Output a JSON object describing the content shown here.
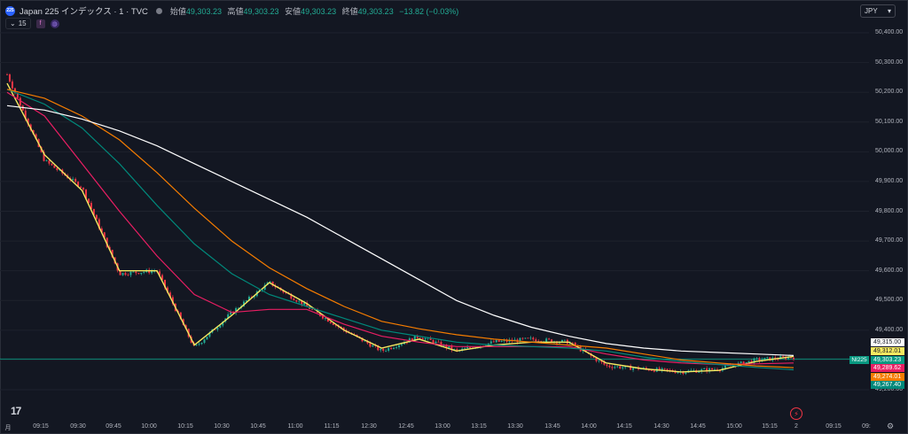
{
  "header": {
    "symbol_logo": "225",
    "title": "Japan 225 インデックス · 1 · TVC",
    "ohlc": [
      {
        "key": "始値",
        "value": "49,303.23"
      },
      {
        "key": "高値",
        "value": "49,303.23"
      },
      {
        "key": "安値",
        "value": "49,303.23"
      },
      {
        "key": "終値",
        "value": "49,303.23"
      }
    ],
    "change": "−13.82 (−0.03%)",
    "interval": "15",
    "currency": "JPY"
  },
  "colors": {
    "background": "#131722",
    "up": "#22ab94",
    "down": "#f23645",
    "ma_yellow": "#f5e960",
    "ma_pink": "#e91e63",
    "ma_teal": "#00897b",
    "ma_orange": "#f57c00",
    "ma_white": "#ffffff"
  },
  "price_axis": {
    "labels": [
      "50,400.00",
      "50,300.00",
      "50,200.00",
      "50,100.00",
      "50,000.00",
      "49,900.00",
      "49,800.00",
      "49,700.00",
      "49,600.00",
      "49,500.00",
      "49,400.00",
      "49,300.00",
      "49,200.00"
    ],
    "tags": [
      {
        "text": "49,315.00",
        "bg": "#ffffff",
        "fg": "#131722"
      },
      {
        "text": "49,312.01",
        "bg": "#f5e960",
        "fg": "#131722"
      },
      {
        "text": "49,303.23",
        "bg": "#089981",
        "fg": "#ffffff"
      },
      {
        "text": "49,289.62",
        "bg": "#e91e63",
        "fg": "#ffffff"
      },
      {
        "text": "49,274.01",
        "bg": "#f57c00",
        "fg": "#ffffff"
      },
      {
        "text": "49,267.40",
        "bg": "#00897b",
        "fg": "#ffffff"
      }
    ],
    "symbol_tag": "NI225"
  },
  "time_axis": {
    "labels": [
      "月",
      "09:15",
      "09:30",
      "09:45",
      "10:00",
      "10:15",
      "10:30",
      "10:45",
      "11:00",
      "11:15",
      "12:30",
      "12:45",
      "13:00",
      "13:15",
      "13:30",
      "13:45",
      "14:00",
      "14:15",
      "14:30",
      "14:45",
      "15:00",
      "15:15",
      "2",
      "09:15",
      "09:"
    ]
  },
  "chart_data": {
    "type": "line",
    "price_series": {
      "name": "",
      "x": [
        "09:00",
        "09:15",
        "09:30",
        "09:45",
        "10:00",
        "10:15",
        "10:30",
        "10:45",
        "11:00",
        "11:15",
        "12:30",
        "12:45",
        "13:00",
        "13:15",
        "13:30",
        "13:45",
        "14:00",
        "14:15",
        "14:30",
        "14:45",
        "15:00",
        "15:15"
      ],
      "values": [
        50260,
        49970,
        49880,
        49590,
        49600,
        49340,
        49460,
        49560,
        49480,
        49400,
        49330,
        49380,
        49330,
        49360,
        49370,
        49360,
        49280,
        49270,
        49260,
        49270,
        49300,
        49310
      ]
    },
    "series": [
      {
        "name": "",
        "color": "#f5e960",
        "values": [
          50230,
          49990,
          49870,
          49600,
          49600,
          49350,
          49450,
          49560,
          49490,
          49400,
          49340,
          49370,
          49330,
          49350,
          49360,
          49360,
          49290,
          49270,
          49260,
          49265,
          49295,
          49312
        ]
      },
      {
        "name": "",
        "color": "#e91e63",
        "values": [
          50200,
          50120,
          49960,
          49800,
          49650,
          49520,
          49460,
          49470,
          49470,
          49420,
          49380,
          49360,
          49345,
          49345,
          49345,
          49345,
          49320,
          49300,
          49290,
          49285,
          49287,
          49290
        ]
      },
      {
        "name": "",
        "color": "#00897b",
        "values": [
          50210,
          50160,
          50080,
          49960,
          49820,
          49690,
          49590,
          49520,
          49480,
          49440,
          49400,
          49380,
          49360,
          49350,
          49345,
          49340,
          49330,
          49310,
          49295,
          49285,
          49275,
          49267
        ]
      },
      {
        "name": "",
        "color": "#f57c00",
        "values": [
          50210,
          50180,
          50120,
          50040,
          49930,
          49810,
          49700,
          49610,
          49540,
          49480,
          49430,
          49405,
          49385,
          49370,
          49360,
          49350,
          49340,
          49320,
          49300,
          49290,
          49280,
          49274
        ]
      },
      {
        "name": "",
        "color": "#ffffff",
        "values": [
          50155,
          50140,
          50110,
          50070,
          50020,
          49960,
          49900,
          49840,
          49780,
          49710,
          49640,
          49570,
          49500,
          49450,
          49410,
          49380,
          49355,
          49340,
          49330,
          49325,
          49320,
          49315
        ]
      }
    ],
    "ylim": [
      49200,
      50400
    ],
    "xlabel": "",
    "ylabel": ""
  }
}
